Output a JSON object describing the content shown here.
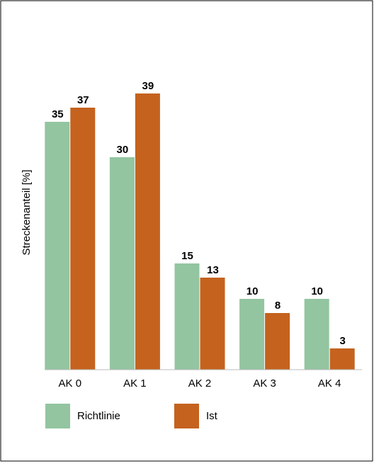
{
  "chart_data": {
    "type": "bar",
    "y_label": "Streckenanteil [%]",
    "categories": [
      "AK 0",
      "AK 1",
      "AK 2",
      "AK 3",
      "AK 4"
    ],
    "series": [
      {
        "name": "Richtlinie",
        "color": "#93c5a0",
        "values": [
          35,
          30,
          15,
          10,
          10
        ]
      },
      {
        "name": "Ist",
        "color": "#c5621e",
        "values": [
          37,
          39,
          13,
          8,
          3
        ]
      }
    ],
    "ylim": [
      0,
      40
    ],
    "legend": "bottom"
  }
}
